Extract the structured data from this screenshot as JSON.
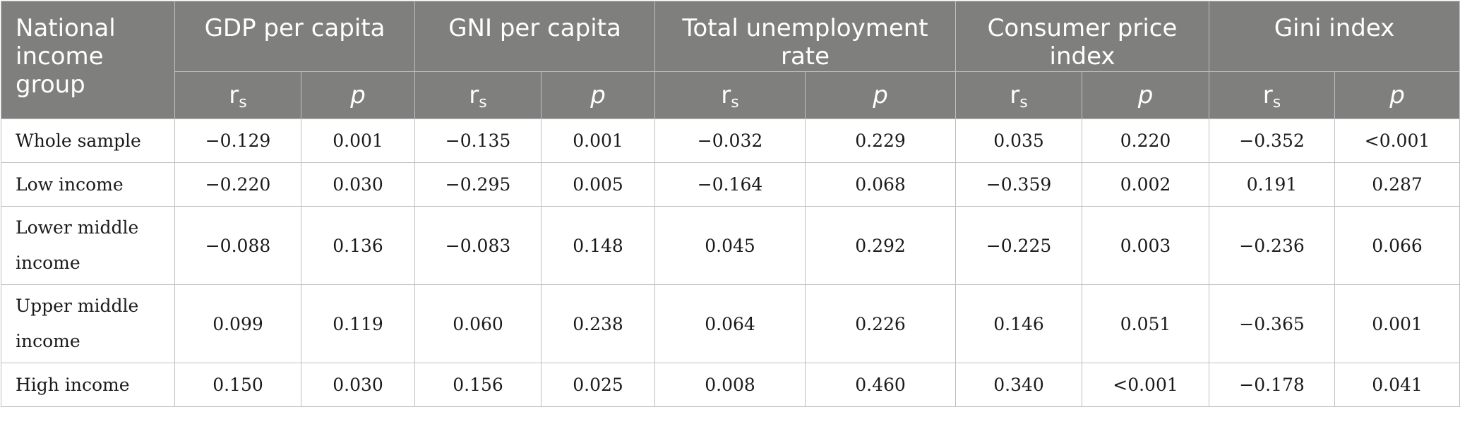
{
  "table": {
    "group_header": [
      "National",
      "income",
      "group"
    ],
    "variables": [
      {
        "label": "GDP per capita"
      },
      {
        "label": "GNI per capita"
      },
      {
        "label": "Total unemployment rate"
      },
      {
        "label": "Consumer price index"
      },
      {
        "label": "Gini index"
      }
    ],
    "sub_headers": {
      "rs_main": "r",
      "rs_sub": "s",
      "p": "p"
    },
    "rows": [
      {
        "label": [
          "Whole sample"
        ],
        "values": [
          "−0.129",
          "0.001",
          "−0.135",
          "0.001",
          "−0.032",
          "0.229",
          "0.035",
          "0.220",
          "−0.352",
          "<0.001"
        ]
      },
      {
        "label": [
          "Low income"
        ],
        "values": [
          "−0.220",
          "0.030",
          "−0.295",
          "0.005",
          "−0.164",
          "0.068",
          "−0.359",
          "0.002",
          "0.191",
          "0.287"
        ]
      },
      {
        "label": [
          "Lower middle",
          "income"
        ],
        "values": [
          "−0.088",
          "0.136",
          "−0.083",
          "0.148",
          "0.045",
          "0.292",
          "−0.225",
          "0.003",
          "−0.236",
          "0.066"
        ]
      },
      {
        "label": [
          "Upper middle",
          "income"
        ],
        "values": [
          "0.099",
          "0.119",
          "0.060",
          "0.238",
          "0.064",
          "0.226",
          "0.146",
          "0.051",
          "−0.365",
          "0.001"
        ]
      },
      {
        "label": [
          "High income"
        ],
        "values": [
          "0.150",
          "0.030",
          "0.156",
          "0.025",
          "0.008",
          "0.460",
          "0.340",
          "<0.001",
          "−0.178",
          "0.041"
        ]
      }
    ],
    "colors": {
      "header_bg": "#7f7f7e",
      "header_text": "#ffffff",
      "grid": "#bfbfbf"
    }
  }
}
